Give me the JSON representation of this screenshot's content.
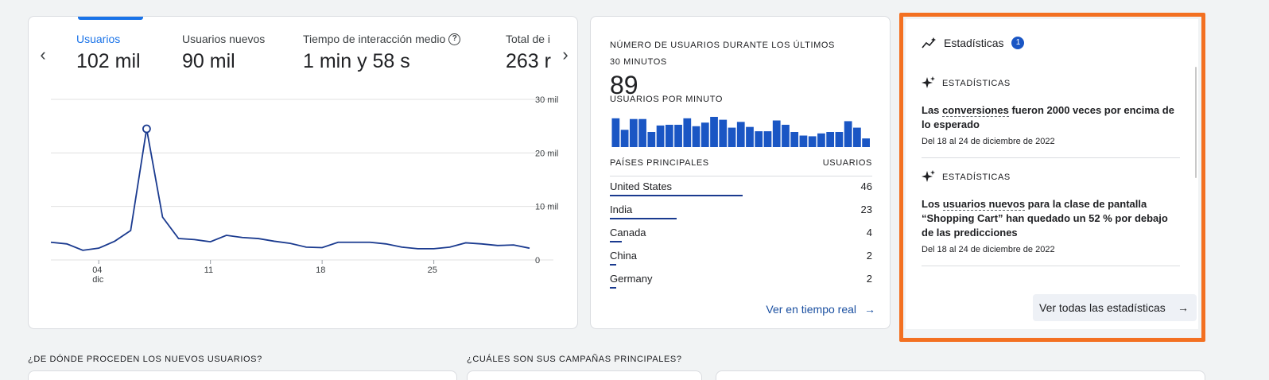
{
  "metrics": [
    {
      "label": "Usuarios",
      "value": "102 mil",
      "active": true
    },
    {
      "label": "Usuarios nuevos",
      "value": "90 mil",
      "active": false
    },
    {
      "label": "Tiempo de interacción medio",
      "value": "1 min y 58 s",
      "active": false
    },
    {
      "label": "Total de i",
      "value": "263 r",
      "active": false
    }
  ],
  "nav": {
    "prev_icon": "chevron-left-icon",
    "next_icon": "chevron-right-icon"
  },
  "users_chart": {
    "type": "line",
    "title": "",
    "x_ticks": [
      {
        "label": "04",
        "sub": "dic"
      },
      {
        "label": "11",
        "sub": ""
      },
      {
        "label": "18",
        "sub": ""
      },
      {
        "label": "25",
        "sub": ""
      }
    ],
    "y_ticks": [
      "30 mil",
      "20 mil",
      "10 mil",
      "0"
    ],
    "ylim": [
      0,
      30000
    ],
    "values": [
      3300,
      3000,
      1800,
      2200,
      3500,
      5500,
      24500,
      8000,
      4000,
      3800,
      3400,
      4600,
      4200,
      4000,
      3500,
      3100,
      2400,
      2300,
      3300,
      3300,
      3300,
      3000,
      2400,
      2100,
      2100,
      2400,
      3200,
      3000,
      2700,
      2800,
      2200
    ],
    "highlight_index": 6,
    "color": "#1a3a8f"
  },
  "realtime": {
    "title": "NÚMERO DE USUARIOS DURANTE LOS ÚLTIMOS 30 MINUTOS",
    "count": "89",
    "per_minute_label": "USUARIOS POR MINUTO",
    "per_minute_values": [
      4,
      2.4,
      3.9,
      3.9,
      2.1,
      3,
      3.1,
      3.1,
      4,
      2.9,
      3.4,
      4.2,
      3.8,
      2.7,
      3.5,
      2.8,
      2.2,
      2.2,
      3.7,
      3.1,
      2.1,
      1.6,
      1.5,
      1.9,
      2.1,
      2.1,
      3.6,
      2.7,
      1.2
    ],
    "bar_color": "#1a56c4",
    "countries_label": "PAÍSES PRINCIPALES",
    "users_label": "USUARIOS",
    "countries": [
      {
        "name": "United States",
        "value": "46",
        "share": 1.0
      },
      {
        "name": "India",
        "value": "23",
        "share": 0.5
      },
      {
        "name": "Canada",
        "value": "4",
        "share": 0.09
      },
      {
        "name": "China",
        "value": "2",
        "share": 0.05
      },
      {
        "name": "Germany",
        "value": "2",
        "share": 0.05
      }
    ],
    "link_label": "Ver en tiempo real"
  },
  "insights": {
    "header": "Estadísticas",
    "badge": "1",
    "items": [
      {
        "kicker": "ESTADÍSTICAS",
        "pre": "Las ",
        "dashed": "conversiones",
        "post": " fueron 2000 veces por encima de lo esperado",
        "date": "Del 18 al 24 de diciembre de 2022"
      },
      {
        "kicker": "ESTADÍSTICAS",
        "pre": "Los ",
        "dashed": "usuarios nuevos",
        "post": " para la clase de pantalla “Shopping Cart” han quedado un 52 % por debajo de las predicciones",
        "date": "Del 18 al 24 de diciembre de 2022"
      }
    ],
    "button_label": "Ver todas las estadísticas"
  },
  "sections": {
    "new_users_heading": "¿DE DÓNDE PROCEDEN LOS NUEVOS USUARIOS?",
    "campaigns_heading": "¿CUÁLES SON SUS CAMPAÑAS PRINCIPALES?"
  }
}
